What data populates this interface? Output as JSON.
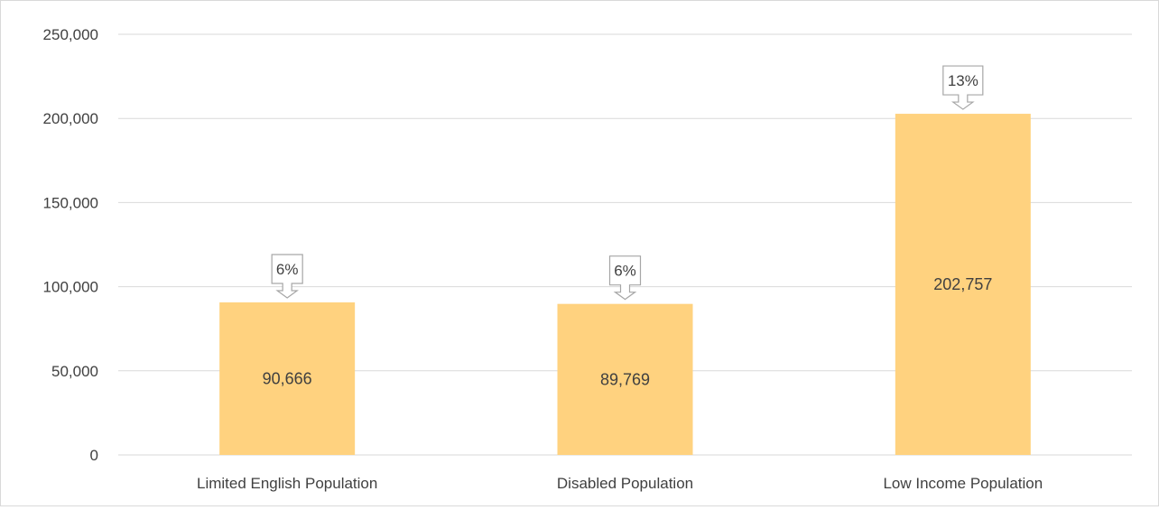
{
  "chart_data": {
    "type": "bar",
    "categories": [
      "Limited English Population",
      "Disabled Population",
      "Low Income Population"
    ],
    "values": [
      90666,
      89769,
      202757
    ],
    "value_labels": [
      "90,666",
      "89,769",
      "202,757"
    ],
    "callouts": [
      "6%",
      "6%",
      "13%"
    ],
    "ylim": [
      0,
      250000
    ],
    "yticks": [
      0,
      50000,
      100000,
      150000,
      200000,
      250000
    ],
    "ytick_labels": [
      "0",
      "50,000",
      "100,000",
      "150,000",
      "200,000",
      "250,000"
    ],
    "grid": true,
    "colors": {
      "bar": "#ffd27f",
      "grid": "#d9d9d9",
      "text": "#404040",
      "callout_border": "#a6a6a6"
    }
  }
}
